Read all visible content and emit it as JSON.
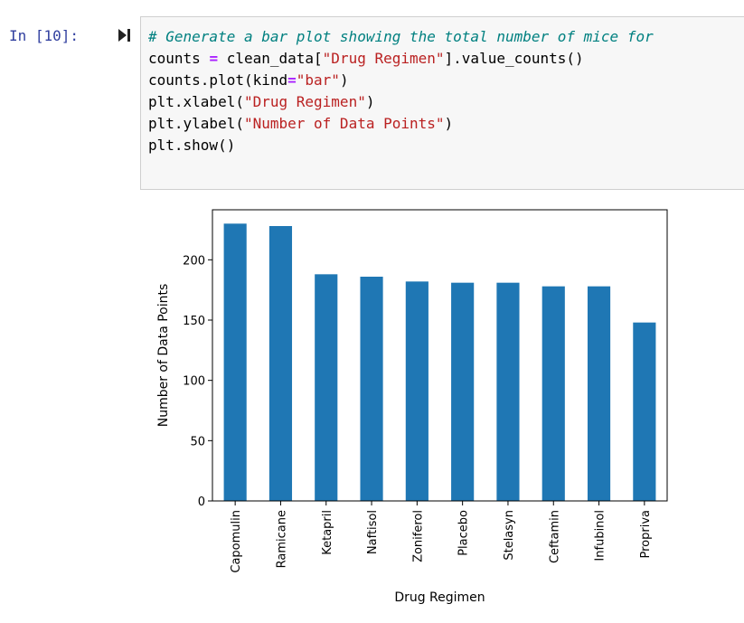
{
  "cell": {
    "prompt": "In [10]:",
    "run_icon": "run-cell-icon",
    "code_lines": [
      [
        {
          "t": "comment",
          "v": "# Generate a bar plot showing the total number of mice for"
        }
      ],
      [
        {
          "t": "plain",
          "v": "counts "
        },
        {
          "t": "op",
          "v": "="
        },
        {
          "t": "plain",
          "v": " clean_data["
        },
        {
          "t": "string",
          "v": "\"Drug Regimen\""
        },
        {
          "t": "plain",
          "v": "].value_counts()"
        }
      ],
      [
        {
          "t": "plain",
          "v": "counts.plot(kind"
        },
        {
          "t": "op",
          "v": "="
        },
        {
          "t": "string",
          "v": "\"bar\""
        },
        {
          "t": "plain",
          "v": ")"
        }
      ],
      [
        {
          "t": "plain",
          "v": "plt.xlabel("
        },
        {
          "t": "string",
          "v": "\"Drug Regimen\""
        },
        {
          "t": "plain",
          "v": ")"
        }
      ],
      [
        {
          "t": "plain",
          "v": "plt.ylabel("
        },
        {
          "t": "string",
          "v": "\"Number of Data Points\""
        },
        {
          "t": "plain",
          "v": ")"
        }
      ],
      [
        {
          "t": "plain",
          "v": "plt.show()"
        }
      ]
    ]
  },
  "colors": {
    "bar": "#1f77b4",
    "prompt": "#303f9f",
    "comment": "#008080",
    "string": "#ba2121",
    "operator": "#aa22ff"
  },
  "chart_data": {
    "type": "bar",
    "categories": [
      "Capomulin",
      "Ramicane",
      "Ketapril",
      "Naftisol",
      "Zoniferol",
      "Placebo",
      "Stelasyn",
      "Ceftamin",
      "Infubinol",
      "Propriva"
    ],
    "values": [
      230,
      228,
      188,
      186,
      182,
      181,
      181,
      178,
      178,
      148
    ],
    "title": "",
    "xlabel": "Drug Regimen",
    "ylabel": "Number of Data Points",
    "ylim": [
      0,
      241.5
    ],
    "yticks": [
      0,
      50,
      100,
      150,
      200
    ],
    "grid": false,
    "legend": "none"
  }
}
